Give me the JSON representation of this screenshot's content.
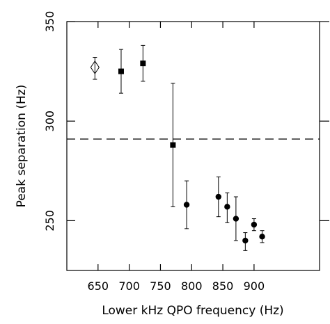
{
  "chart_data": {
    "type": "scatter",
    "title": "",
    "xlabel": "Lower kHz QPO frequency (Hz)",
    "ylabel": "Peak separation (Hz)",
    "xlim": [
      600,
      1005
    ],
    "ylim": [
      225,
      350
    ],
    "xticks": [
      650,
      700,
      750,
      800,
      850,
      900
    ],
    "xtick_labels": [
      "650",
      "700",
      "750",
      "800",
      "850",
      "900"
    ],
    "yticks": [
      250,
      300,
      350
    ],
    "ytick_labels": [
      "250",
      "300",
      "350"
    ],
    "grid": false,
    "reference_line": {
      "y": 291,
      "style": "dashed"
    },
    "series": [
      {
        "marker": "diamond-open",
        "points": [
          {
            "x": 645,
            "y": 327,
            "yerr_low": 321,
            "yerr_high": 332
          }
        ]
      },
      {
        "marker": "square-filled",
        "points": [
          {
            "x": 687,
            "y": 325,
            "yerr_low": 314,
            "yerr_high": 336
          },
          {
            "x": 722,
            "y": 329,
            "yerr_low": 320,
            "yerr_high": 338
          },
          {
            "x": 770,
            "y": 288,
            "yerr_low": 257,
            "yerr_high": 319
          }
        ]
      },
      {
        "marker": "circle-filled",
        "points": [
          {
            "x": 792,
            "y": 258,
            "yerr_low": 246,
            "yerr_high": 270
          },
          {
            "x": 843,
            "y": 262,
            "yerr_low": 252,
            "yerr_high": 272
          },
          {
            "x": 857,
            "y": 257,
            "yerr_low": 249,
            "yerr_high": 264
          },
          {
            "x": 871,
            "y": 251,
            "yerr_low": 240,
            "yerr_high": 262
          },
          {
            "x": 886,
            "y": 240,
            "yerr_low": 235,
            "yerr_high": 244
          },
          {
            "x": 900,
            "y": 248,
            "yerr_low": 245,
            "yerr_high": 251
          },
          {
            "x": 913,
            "y": 242,
            "yerr_low": 239,
            "yerr_high": 245
          }
        ]
      }
    ]
  }
}
